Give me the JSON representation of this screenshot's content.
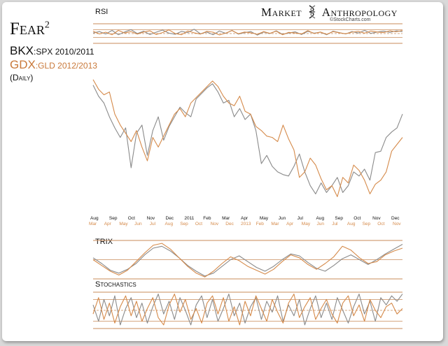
{
  "brand": {
    "name_left": "Market",
    "name_right": "Anthropology",
    "source": "©StockCharts.com"
  },
  "title": {
    "main": "Fear",
    "sup": "2"
  },
  "legend": {
    "line1_main": "BKX",
    "line1_rest": ":SPX 2010/2011",
    "line2_main": "GDX",
    "line2_rest": ":GLD 2012/2013",
    "line3": "(Daily)"
  },
  "colors": {
    "series_2010": "#8a8a8a",
    "series_2012": "#d58a4a",
    "text": "#111111",
    "levels": "#c98b5a"
  },
  "chart_data": [
    {
      "type": "line",
      "panel": "RSI",
      "title": "RSI",
      "levels": [
        70,
        50,
        30
      ],
      "ylim": [
        0,
        100
      ],
      "series": [
        {
          "name": "BKX:SPX 2010/2011",
          "values": [
            53,
            60,
            48,
            66,
            44,
            58,
            70,
            50,
            62,
            45,
            57,
            68,
            52,
            46,
            61,
            55,
            72,
            49,
            58,
            44,
            63,
            51,
            66,
            47,
            55,
            60,
            42,
            58,
            50,
            64,
            46,
            53,
            59,
            45,
            61,
            52,
            57,
            44,
            62,
            55,
            48,
            60,
            53,
            66,
            51,
            58,
            62,
            56,
            64,
            60
          ]
        },
        {
          "name": "GDX:GLD 2012/2013",
          "values": [
            62,
            48,
            57,
            44,
            66,
            53,
            60,
            47,
            58,
            64,
            45,
            55,
            69,
            50,
            44,
            63,
            54,
            47,
            61,
            57,
            43,
            52,
            65,
            49,
            58,
            54,
            46,
            60,
            51,
            62,
            44,
            56,
            53,
            48,
            65,
            50,
            58,
            46,
            60,
            54,
            49,
            57,
            61,
            52,
            63,
            58,
            55,
            64,
            59,
            66
          ]
        }
      ]
    },
    {
      "type": "line",
      "panel": "Ratio",
      "x_labels_2010": [
        "Aug",
        "Sep",
        "Oct",
        "Nov",
        "Dec",
        "2011",
        "Feb",
        "Mar",
        "Apr",
        "May",
        "Jun",
        "Jul",
        "Aug",
        "Sep",
        "Oct",
        "Nov",
        "Dec"
      ],
      "x_labels_2012": [
        "Mar",
        "Apr",
        "May",
        "Jun",
        "Jul",
        "Aug",
        "Sep",
        "Oct",
        "Nov",
        "Dec",
        "2013",
        "Feb",
        "Mar",
        "Apr",
        "May",
        "Jun",
        "Jul",
        "Aug",
        "Sep",
        "Oct",
        "Nov"
      ],
      "ylim": [
        0,
        100
      ],
      "series": [
        {
          "name": "BKX:SPX 2010/2011",
          "values": [
            93,
            85,
            80,
            70,
            62,
            55,
            62,
            33,
            58,
            64,
            42,
            60,
            70,
            53,
            63,
            70,
            77,
            73,
            70,
            83,
            87,
            91,
            94,
            88,
            80,
            82,
            70,
            76,
            68,
            72,
            60,
            36,
            42,
            34,
            30,
            28,
            27,
            34,
            43,
            30,
            20,
            14,
            22,
            15,
            20,
            26,
            15,
            20,
            30,
            27,
            32,
            24,
            44,
            45,
            55,
            59,
            62,
            72
          ]
        },
        {
          "name": "GDX:GLD 2012/2013",
          "values": [
            97,
            90,
            86,
            88,
            72,
            64,
            58,
            52,
            60,
            48,
            38,
            55,
            48,
            56,
            64,
            72,
            76,
            70,
            80,
            84,
            88,
            92,
            96,
            92,
            85,
            80,
            78,
            85,
            74,
            72,
            63,
            60,
            56,
            55,
            52,
            64,
            54,
            46,
            26,
            30,
            40,
            35,
            25,
            17,
            20,
            12,
            26,
            22,
            35,
            31,
            24,
            14,
            21,
            24,
            30,
            45,
            50,
            55
          ]
        }
      ]
    },
    {
      "type": "line",
      "panel": "TRIX",
      "title": "TRIX",
      "levels": [
        0
      ],
      "ylim": [
        -1,
        1
      ],
      "series": [
        {
          "name": "BKX:SPX 2010/2011",
          "values": [
            0.1,
            -0.2,
            -0.55,
            -0.7,
            -0.5,
            -0.2,
            0.25,
            0.6,
            0.7,
            0.45,
            0.1,
            -0.3,
            -0.6,
            -0.85,
            -0.7,
            -0.35,
            0.0,
            0.2,
            -0.1,
            -0.4,
            -0.6,
            -0.35,
            0.0,
            0.3,
            0.2,
            -0.15,
            -0.45,
            -0.6,
            -0.3,
            0.05,
            0.25,
            0.0,
            -0.25,
            0.0,
            0.3,
            0.55,
            0.8
          ]
        },
        {
          "name": "GDX:GLD 2012/2013",
          "values": [
            0.0,
            -0.3,
            -0.6,
            -0.8,
            -0.55,
            -0.1,
            0.35,
            0.75,
            0.85,
            0.55,
            0.1,
            -0.35,
            -0.7,
            -0.9,
            -0.6,
            -0.2,
            0.15,
            -0.05,
            -0.35,
            -0.55,
            -0.75,
            -0.5,
            -0.1,
            0.25,
            0.1,
            -0.25,
            -0.5,
            -0.2,
            0.15,
            0.7,
            0.5,
            0.1,
            -0.2,
            -0.1,
            0.25,
            0.45,
            0.6
          ]
        }
      ]
    },
    {
      "type": "line",
      "panel": "Stochastics",
      "title": "Stochastics",
      "levels": [
        80,
        50,
        20
      ],
      "ylim": [
        0,
        100
      ],
      "series": [
        {
          "name": "BKX:SPX 2010/2011",
          "values": [
            65,
            20,
            80,
            35,
            90,
            10,
            55,
            85,
            30,
            70,
            15,
            60,
            95,
            40,
            75,
            25,
            85,
            50,
            10,
            65,
            90,
            30,
            80,
            20,
            55,
            95,
            35,
            70,
            15,
            60,
            85,
            25,
            75,
            45,
            90,
            20,
            65,
            35,
            80,
            10,
            55,
            90,
            30,
            70,
            25,
            85,
            50,
            15,
            60,
            95,
            40,
            75,
            20,
            85,
            65,
            90,
            75,
            95
          ]
        },
        {
          "name": "GDX:GLD 2012/2013",
          "values": [
            40,
            85,
            25,
            70,
            15,
            60,
            90,
            35,
            75,
            20,
            55,
            85,
            30,
            10,
            65,
            95,
            45,
            80,
            25,
            55,
            15,
            70,
            90,
            40,
            85,
            20,
            60,
            10,
            75,
            35,
            90,
            55,
            20,
            80,
            45,
            15,
            70,
            95,
            30,
            60,
            85,
            25,
            55,
            80,
            40,
            15,
            70,
            90,
            35,
            65,
            20,
            80,
            50,
            30,
            60,
            70,
            40,
            55
          ]
        }
      ]
    }
  ]
}
